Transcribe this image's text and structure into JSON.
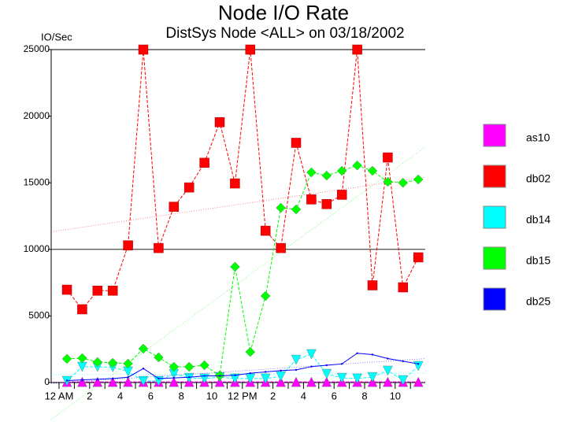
{
  "chart_data": {
    "type": "line",
    "title": "Node I/O Rate",
    "subtitle": "DistSys Node <ALL> on 03/18/2002",
    "y_label": "IO/Sec",
    "categories": [
      "12 AM",
      null,
      "2",
      null,
      "4",
      null,
      "6",
      null,
      "8",
      null,
      "10",
      null,
      "12 PM",
      null,
      "2",
      null,
      "4",
      null,
      "6",
      null,
      "8",
      null,
      "10",
      null
    ],
    "ylim": [
      0,
      25000
    ],
    "yticks": [
      0,
      5000,
      10000,
      15000,
      20000,
      25000
    ],
    "hline": 10000,
    "trend_lines": true,
    "series": [
      {
        "name": "as10",
        "color": "#ff00ff",
        "marker": "triangle-up",
        "values": [
          50,
          50,
          50,
          50,
          50,
          50,
          50,
          50,
          50,
          50,
          50,
          50,
          50,
          50,
          50,
          50,
          50,
          50,
          50,
          50,
          50,
          50,
          50,
          50
        ]
      },
      {
        "name": "db02",
        "color": "#ff0000",
        "marker": "square",
        "values": [
          6970,
          5500,
          6900,
          6900,
          10300,
          25000,
          10100,
          13200,
          14650,
          16500,
          19550,
          14950,
          25000,
          11400,
          10100,
          18000,
          13750,
          13400,
          14100,
          25000,
          7300,
          16900,
          7150,
          9400
        ]
      },
      {
        "name": "db14",
        "color": "#00ffff",
        "marker": "triangle-down",
        "values": [
          120,
          1180,
          1180,
          1150,
          830,
          120,
          120,
          650,
          350,
          300,
          410,
          300,
          300,
          300,
          470,
          1710,
          2130,
          650,
          350,
          300,
          410,
          890,
          180,
          1240
        ]
      },
      {
        "name": "db15",
        "color": "#00ff00",
        "marker": "diamond",
        "values": [
          1780,
          1830,
          1540,
          1480,
          1420,
          2540,
          1890,
          1180,
          1180,
          1300,
          530,
          8690,
          2300,
          6500,
          13120,
          13000,
          15780,
          15540,
          15900,
          16300,
          15900,
          15070,
          15000,
          15250
        ]
      },
      {
        "name": "db25",
        "color": "#0000ff",
        "marker": "none",
        "values": [
          150,
          200,
          250,
          300,
          400,
          1050,
          300,
          350,
          400,
          500,
          500,
          550,
          700,
          800,
          900,
          950,
          1200,
          1300,
          1400,
          2200,
          2100,
          1800,
          1600,
          1400
        ]
      }
    ]
  }
}
